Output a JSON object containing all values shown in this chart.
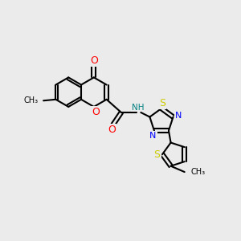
{
  "bg_color": "#ebebeb",
  "bond_color": "#000000",
  "bond_width": 1.5,
  "atom_colors": {
    "O": "#ff0000",
    "N": "#0000ff",
    "S": "#cccc00",
    "NH": "#008080",
    "C": "#000000"
  },
  "font_size": 8,
  "fig_size": [
    3.0,
    3.0
  ],
  "dpi": 100
}
